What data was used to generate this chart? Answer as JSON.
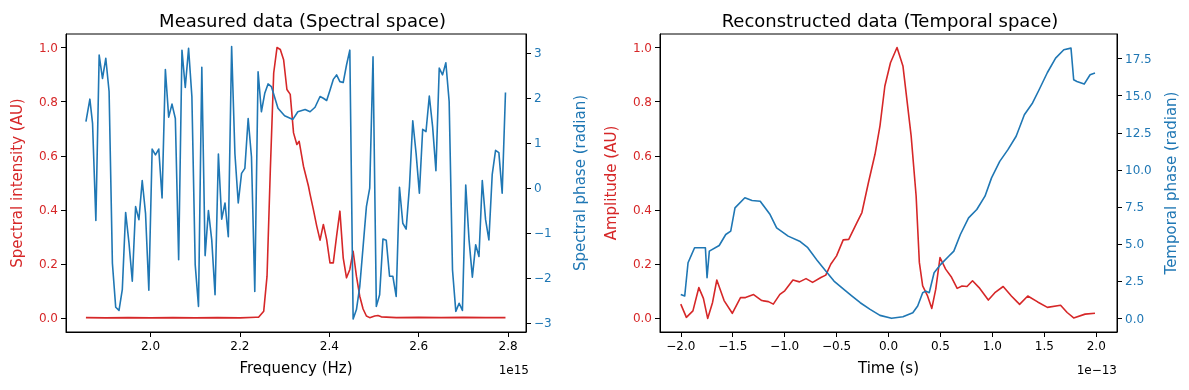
{
  "chart_data": [
    {
      "type": "line",
      "title": "Measured data (Spectral space)",
      "xlabel": "Frequency (Hz)",
      "ylabel": "Spectral intensity (AU)",
      "y2label": "Spectral phase (radian)",
      "annotations": [
        "1e15"
      ],
      "xlim": [
        1.811,
        2.84
      ],
      "xticks": [
        {
          "value": 2.0,
          "label": "2.0"
        },
        {
          "value": 2.2,
          "label": "2.2"
        },
        {
          "value": 2.4,
          "label": "2.4"
        },
        {
          "value": 2.6,
          "label": "2.6"
        },
        {
          "value": 2.8,
          "label": "2.8"
        }
      ],
      "ylim": [
        -0.05,
        1.05
      ],
      "yticks": [
        {
          "value": 0,
          "label": "0.0"
        },
        {
          "value": 0.2,
          "label": "0.2"
        },
        {
          "value": 0.4,
          "label": "0.4"
        },
        {
          "value": 0.6,
          "label": "0.6"
        },
        {
          "value": 0.8,
          "label": "0.8"
        },
        {
          "value": 1,
          "label": "1.0"
        }
      ],
      "y2lim": [
        -3.2,
        3.43
      ],
      "y2ticks": [
        {
          "value": -3,
          "label": "−3"
        },
        {
          "value": -2,
          "label": "−2"
        },
        {
          "value": -1,
          "label": "−1"
        },
        0,
        1,
        2,
        3
      ],
      "grid": false,
      "marker": "none",
      "line_style": "solid",
      "series": [
        {
          "color": "#d62728",
          "x": [
            1.8556,
            1.9,
            1.95,
            2.0,
            2.05,
            2.1,
            2.15,
            2.2,
            2.2422,
            2.2533,
            2.2607,
            2.2681,
            2.2756,
            2.283,
            2.2904,
            2.2978,
            2.3052,
            2.3126,
            2.32,
            2.3274,
            2.3326,
            2.3422,
            2.3533,
            2.357,
            2.3644,
            2.3719,
            2.3793,
            2.3867,
            2.3941,
            2.4015,
            2.4089,
            2.4163,
            2.4237,
            2.4311,
            2.4385,
            2.4459,
            2.4533,
            2.4607,
            2.4681,
            2.4756,
            2.483,
            2.4904,
            2.5015,
            2.5089,
            2.5163,
            2.55,
            2.6,
            2.65,
            2.7,
            2.75,
            2.7941
          ],
          "values": [
            0.003,
            0.002,
            0.003,
            0.002,
            0.003,
            0.002,
            0.003,
            0.002,
            0.005,
            0.027,
            0.156,
            0.55,
            0.906,
            1.0,
            0.993,
            0.955,
            0.845,
            0.827,
            0.685,
            0.642,
            0.654,
            0.562,
            0.489,
            0.458,
            0.402,
            0.341,
            0.289,
            0.347,
            0.291,
            0.205,
            0.205,
            0.304,
            0.396,
            0.224,
            0.15,
            0.181,
            0.248,
            0.156,
            0.082,
            0.035,
            0.009,
            0.003,
            0.009,
            0.011,
            0.006,
            0.003,
            0.004,
            0.003,
            0.004,
            0.003,
            0.003
          ]
        },
        {
          "color": "#1f77b4",
          "axis": "y2",
          "x": [
            1.8556,
            1.8644,
            1.8704,
            1.8778,
            1.8852,
            1.8926,
            1.9,
            1.9074,
            1.9148,
            1.9222,
            1.9296,
            1.937,
            1.9444,
            1.9519,
            1.9593,
            1.9667,
            1.9741,
            1.9815,
            1.9889,
            1.9963,
            2.0037,
            2.0111,
            2.0185,
            2.0259,
            2.0333,
            2.0407,
            2.0481,
            2.0556,
            2.063,
            2.0704,
            2.0778,
            2.0852,
            2.0926,
            2.1,
            2.1074,
            2.1148,
            2.1222,
            2.1296,
            2.137,
            2.1444,
            2.1519,
            2.1593,
            2.1667,
            2.1741,
            2.1815,
            2.1889,
            2.1963,
            2.2037,
            2.2111,
            2.2185,
            2.2259,
            2.2333,
            2.2407,
            2.2481,
            2.2556,
            2.263,
            2.2704,
            2.2852,
            2.3,
            2.3185,
            2.3296,
            2.3459,
            2.357,
            2.3681,
            2.3793,
            2.3867,
            2.3941,
            2.4015,
            2.4089,
            2.4163,
            2.4237,
            2.4311,
            2.4385,
            2.4459,
            2.4533,
            2.4607,
            2.4681,
            2.4756,
            2.483,
            2.4904,
            2.4978,
            2.5052,
            2.5126,
            2.52,
            2.5274,
            2.5348,
            2.5422,
            2.5496,
            2.557,
            2.5644,
            2.5719,
            2.5793,
            2.5867,
            2.5941,
            2.6015,
            2.6089,
            2.6163,
            2.6237,
            2.6311,
            2.6385,
            2.6459,
            2.6533,
            2.6607,
            2.6681,
            2.6756,
            2.683,
            2.6904,
            2.6978,
            2.7052,
            2.7126,
            2.72,
            2.7274,
            2.7348,
            2.7422,
            2.7496,
            2.757,
            2.7644,
            2.7719,
            2.7793,
            2.7867,
            2.7941
          ],
          "values": [
            1.48,
            1.98,
            1.44,
            -0.72,
            2.96,
            2.44,
            2.89,
            2.15,
            -1.67,
            -2.65,
            -2.72,
            -2.25,
            -0.54,
            -1.22,
            -2.07,
            -0.41,
            -0.7,
            0.17,
            -0.56,
            -2.27,
            0.87,
            0.74,
            0.87,
            -0.22,
            2.64,
            1.58,
            1.87,
            1.55,
            -1.59,
            3.07,
            2.24,
            3.11,
            2.04,
            -1.7,
            -2.63,
            2.69,
            -1.5,
            -0.5,
            -1.15,
            -2.37,
            0.76,
            -0.69,
            -0.33,
            -1.08,
            3.15,
            0.76,
            -0.33,
            0.33,
            0.44,
            1.55,
            0.7,
            -2.3,
            2.59,
            1.7,
            2.11,
            2.32,
            2.26,
            1.78,
            1.61,
            1.53,
            1.7,
            1.75,
            1.7,
            1.8,
            2.04,
            2.0,
            1.95,
            2.18,
            2.42,
            2.52,
            2.37,
            2.35,
            2.74,
            3.07,
            -2.91,
            -2.7,
            -2.19,
            -1.3,
            -0.41,
            0.0,
            2.92,
            -2.63,
            -2.37,
            -1.13,
            -1.16,
            -1.96,
            -1.96,
            -2.41,
            0.02,
            -0.78,
            -0.91,
            0.04,
            1.5,
            0.78,
            -0.11,
            1.31,
            1.26,
            2.05,
            1.37,
            0.39,
            2.67,
            2.52,
            2.79,
            1.93,
            -1.82,
            -2.74,
            -2.56,
            -2.72,
            0.07,
            -1.15,
            -1.98,
            -1.26,
            -1.52,
            0.17,
            -0.7,
            -1.15,
            0.3,
            0.84,
            0.79,
            -0.11,
            2.13
          ]
        }
      ]
    },
    {
      "type": "line",
      "title": "Reconstructed data (Temporal space)",
      "xlabel": "Time (s)",
      "ylabel": "Amplitude (AU)",
      "y2label": "Temporal phase (radian)",
      "annotations": [
        "1e−13"
      ],
      "xlim": [
        -2.2,
        2.2
      ],
      "xticks": [
        {
          "value": -2,
          "label": "−2.0"
        },
        {
          "value": -1.5,
          "label": "−1.5"
        },
        {
          "value": -1,
          "label": "−1.0"
        },
        {
          "value": -0.5,
          "label": "−0.5"
        },
        {
          "value": 0,
          "label": "0.0"
        },
        {
          "value": 0.5,
          "label": "0.5"
        },
        {
          "value": 1,
          "label": "1.0"
        },
        {
          "value": 1.5,
          "label": "1.5"
        },
        {
          "value": 2,
          "label": "2.0"
        }
      ],
      "ylim": [
        -0.05,
        1.05
      ],
      "yticks": [
        {
          "value": 0,
          "label": "0.0"
        },
        {
          "value": 0.2,
          "label": "0.2"
        },
        {
          "value": 0.4,
          "label": "0.4"
        },
        {
          "value": 0.6,
          "label": "0.6"
        },
        {
          "value": 0.8,
          "label": "0.8"
        },
        {
          "value": 1,
          "label": "1.0"
        }
      ],
      "y2lim": [
        -0.9,
        19.15
      ],
      "y2ticks": [
        {
          "value": 0,
          "label": "0.0"
        },
        2.5,
        {
          "value": 5,
          "label": "5.0"
        },
        7.5,
        {
          "value": 10,
          "label": "10.0"
        },
        12.5,
        {
          "value": 15,
          "label": "15.0"
        },
        17.5
      ],
      "grid": false,
      "marker": "none",
      "line_style": "solid",
      "series": [
        {
          "color": "#d62728",
          "x": [
            -2.0,
            -1.946,
            -1.883,
            -1.826,
            -1.782,
            -1.741,
            -1.694,
            -1.653,
            -1.583,
            -1.504,
            -1.425,
            -1.377,
            -1.299,
            -1.22,
            -1.156,
            -1.109,
            -1.046,
            -0.999,
            -0.92,
            -0.857,
            -0.794,
            -0.731,
            -0.651,
            -0.604,
            -0.556,
            -0.5,
            -0.436,
            -0.383,
            -0.304,
            -0.256,
            -0.193,
            -0.13,
            -0.082,
            -0.035,
            0.019,
            0.082,
            0.139,
            0.218,
            0.266,
            0.297,
            0.329,
            0.376,
            0.417,
            0.455,
            0.496,
            0.55,
            0.607,
            0.661,
            0.708,
            0.756,
            0.809,
            0.872,
            0.961,
            1.024,
            1.104,
            1.183,
            1.262,
            1.341,
            1.436,
            1.53,
            1.657,
            1.72,
            1.783,
            1.893,
            1.988
          ],
          "values": [
            0.053,
            0.004,
            0.028,
            0.114,
            0.074,
            0.0,
            0.059,
            0.142,
            0.066,
            0.019,
            0.077,
            0.077,
            0.088,
            0.066,
            0.062,
            0.053,
            0.089,
            0.102,
            0.142,
            0.135,
            0.147,
            0.133,
            0.151,
            0.16,
            0.2,
            0.231,
            0.29,
            0.292,
            0.354,
            0.391,
            0.502,
            0.606,
            0.711,
            0.858,
            0.944,
            1.0,
            0.932,
            0.674,
            0.452,
            0.207,
            0.12,
            0.083,
            0.037,
            0.108,
            0.225,
            0.182,
            0.152,
            0.111,
            0.12,
            0.118,
            0.139,
            0.114,
            0.068,
            0.095,
            0.118,
            0.083,
            0.052,
            0.083,
            0.061,
            0.041,
            0.049,
            0.022,
            0.002,
            0.016,
            0.019
          ]
        },
        {
          "color": "#1f77b4",
          "axis": "y2",
          "x": [
            -2.0,
            -1.962,
            -1.93,
            -1.867,
            -1.763,
            -1.747,
            -1.725,
            -1.63,
            -1.567,
            -1.519,
            -1.478,
            -1.383,
            -1.314,
            -1.235,
            -1.14,
            -1.077,
            -0.966,
            -0.856,
            -0.777,
            -0.682,
            -0.604,
            -0.525,
            -0.43,
            -0.351,
            -0.272,
            -0.177,
            -0.082,
            0.029,
            0.139,
            0.234,
            0.281,
            0.329,
            0.36,
            0.392,
            0.439,
            0.503,
            0.582,
            0.629,
            0.692,
            0.771,
            0.85,
            0.929,
            0.992,
            1.071,
            1.15,
            1.229,
            1.308,
            1.387,
            1.45,
            1.53,
            1.609,
            1.688,
            1.757,
            1.783,
            1.814,
            1.884,
            1.941,
            1.988
          ],
          "values": [
            1.63,
            1.52,
            3.76,
            4.77,
            4.77,
            2.75,
            4.54,
            4.92,
            5.66,
            5.89,
            7.45,
            8.13,
            7.95,
            7.9,
            7.0,
            6.11,
            5.55,
            5.21,
            4.77,
            3.87,
            3.2,
            2.53,
            1.97,
            1.52,
            1.07,
            0.62,
            0.22,
            0.02,
            0.13,
            0.4,
            0.85,
            1.74,
            1.85,
            1.74,
            3.09,
            3.65,
            4.21,
            4.54,
            5.66,
            6.78,
            7.34,
            8.24,
            9.47,
            10.58,
            11.37,
            12.27,
            13.72,
            14.51,
            15.4,
            16.56,
            17.53,
            18.09,
            18.2,
            16.07,
            15.96,
            15.78,
            16.41,
            16.52
          ]
        }
      ]
    }
  ]
}
